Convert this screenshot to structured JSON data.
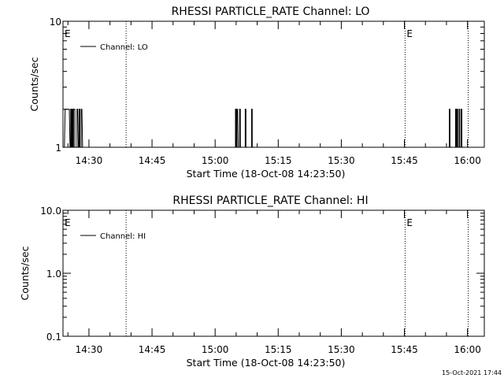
{
  "footer_timestamp": "15-Oct-2021 17:44",
  "chart_data": [
    {
      "type": "line",
      "title": "RHESSI PARTICLE_RATE Channel: LO",
      "xlabel": "Start Time (18-Oct-08 14:23:50)",
      "ylabel": "Counts/sec",
      "y_scale": "log",
      "ylim": [
        1,
        10
      ],
      "y_ticks": [
        1,
        10
      ],
      "y_tick_labels": [
        "1",
        "10"
      ],
      "xlim": [
        "14:23:50",
        "16:04:00"
      ],
      "x_ticks": [
        "14:30",
        "14:45",
        "15:00",
        "15:15",
        "15:30",
        "15:45",
        "16:00"
      ],
      "legend": {
        "position": "top-left",
        "entry": "Channel: LO"
      },
      "markers": [
        {
          "time": "14:23:50",
          "label": "E",
          "dotted": false
        },
        {
          "time": "14:38:50",
          "label": "",
          "dotted": true
        },
        {
          "time": "15:45:10",
          "label": "E",
          "dotted": true
        },
        {
          "time": "16:00:10",
          "label": "",
          "dotted": true
        }
      ],
      "series": [
        {
          "name": "Channel: LO",
          "x": [
            "14:24:00",
            "14:24:20",
            "14:24:30",
            "14:24:50",
            "14:25:10",
            "14:25:30",
            "14:25:40",
            "14:25:50",
            "14:26:00",
            "14:26:10",
            "14:26:20",
            "14:26:30",
            "14:26:40",
            "14:26:50",
            "14:27:00",
            "14:27:10",
            "14:27:30",
            "14:27:40",
            "14:27:50",
            "14:28:00",
            "14:28:10",
            "14:28:30",
            "15:04:40",
            "15:04:50",
            "15:05:00",
            "15:05:10",
            "15:05:30",
            "15:05:40",
            "15:05:50",
            "15:06:00",
            "15:06:10",
            "15:07:00",
            "15:07:10",
            "15:07:20",
            "15:07:30",
            "15:07:40",
            "15:08:30",
            "15:08:40",
            "15:08:50",
            "15:09:00",
            "15:09:10",
            "15:55:30",
            "15:55:40",
            "15:55:50",
            "15:56:00",
            "15:56:10",
            "15:57:00",
            "15:57:10",
            "15:57:20",
            "15:57:30",
            "15:57:40",
            "15:57:50",
            "15:58:00",
            "15:58:10",
            "15:58:20",
            "15:58:30",
            "15:58:40",
            "15:58:50",
            "15:59:00",
            "15:59:10"
          ],
          "values": [
            1,
            2,
            2,
            2,
            2,
            1,
            2,
            1,
            2,
            1,
            2,
            2,
            1,
            1,
            1,
            2,
            1,
            2,
            1,
            1,
            2,
            1,
            1,
            2,
            1,
            2,
            1,
            1,
            2,
            1,
            1,
            1,
            2,
            1,
            1,
            1,
            1,
            2,
            1,
            1,
            1,
            1,
            2,
            1,
            1,
            1,
            1,
            2,
            1,
            2,
            1,
            1,
            2,
            1,
            1,
            2,
            1,
            1,
            1,
            1
          ]
        }
      ]
    },
    {
      "type": "line",
      "title": "RHESSI PARTICLE_RATE Channel: HI",
      "xlabel": "Start Time (18-Oct-08 14:23:50)",
      "ylabel": "Counts/sec",
      "y_scale": "log",
      "ylim": [
        0.1,
        10
      ],
      "y_ticks": [
        0.1,
        1,
        10
      ],
      "y_tick_labels": [
        "0.1",
        "1.0",
        "10.0"
      ],
      "xlim": [
        "14:23:50",
        "16:04:00"
      ],
      "x_ticks": [
        "14:30",
        "14:45",
        "15:00",
        "15:15",
        "15:30",
        "15:45",
        "16:00"
      ],
      "legend": {
        "position": "top-left",
        "entry": "Channel: HI"
      },
      "markers": [
        {
          "time": "14:23:50",
          "label": "E",
          "dotted": false
        },
        {
          "time": "14:38:50",
          "label": "",
          "dotted": true
        },
        {
          "time": "15:45:10",
          "label": "E",
          "dotted": true
        },
        {
          "time": "16:00:10",
          "label": "",
          "dotted": true
        }
      ],
      "series": [
        {
          "name": "Channel: HI",
          "x": [],
          "values": []
        }
      ]
    }
  ]
}
